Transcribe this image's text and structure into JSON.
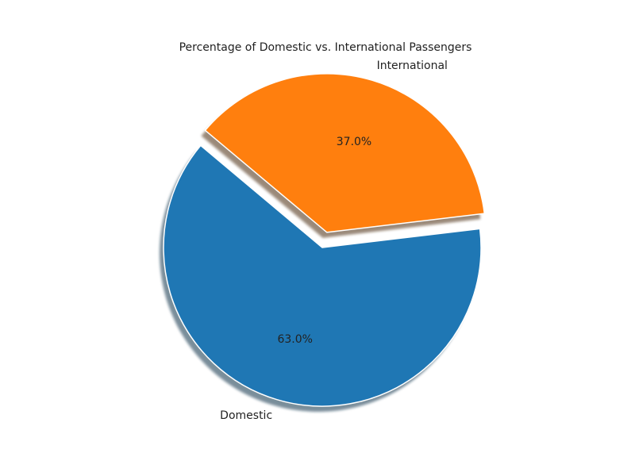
{
  "chart_data": {
    "type": "pie",
    "title": "Percentage of Domestic vs. International Passengers",
    "categories": [
      "Domestic",
      "International"
    ],
    "values": [
      63.0,
      37.0
    ],
    "labels": [
      "63.0%",
      "37.0%"
    ],
    "colors": [
      "#1f77b4",
      "#ff7f0e"
    ],
    "explode": [
      0,
      0.1
    ],
    "start_angle_deg": 140,
    "shadow": true
  }
}
